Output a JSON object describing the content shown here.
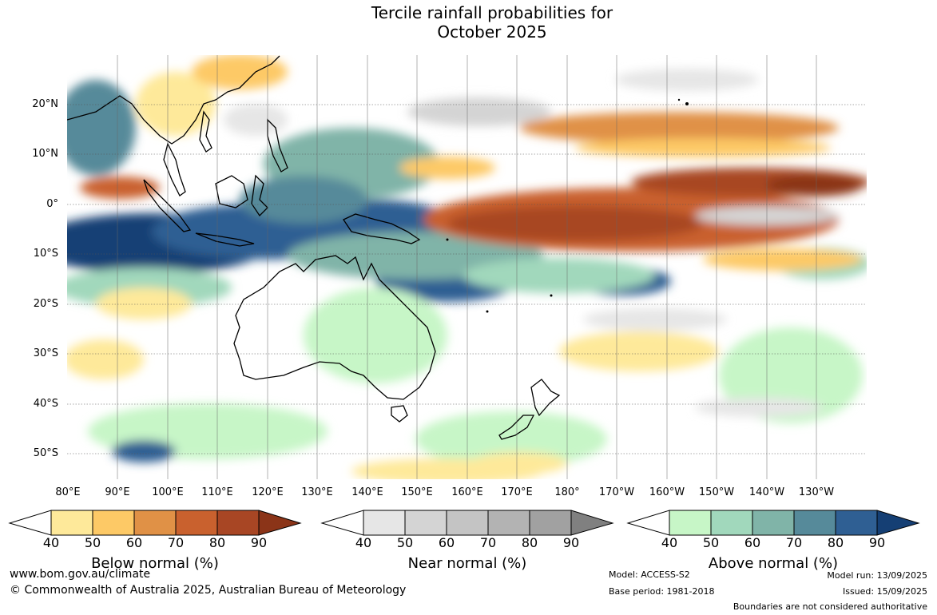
{
  "title": {
    "line1": "Tercile rainfall probabilities for",
    "line2": "October 2025"
  },
  "map": {
    "lat_labels": [
      "20°N",
      "10°N",
      "0°",
      "10°S",
      "20°S",
      "30°S",
      "40°S",
      "50°S"
    ],
    "lon_labels": [
      "80°E",
      "90°E",
      "100°E",
      "110°E",
      "120°E",
      "130°E",
      "140°E",
      "150°E",
      "160°E",
      "170°E",
      "180°",
      "170°W",
      "160°W",
      "150°W",
      "140°W",
      "130°W"
    ]
  },
  "legends": [
    {
      "title": "Below normal (%)",
      "ticks": [
        "40",
        "50",
        "60",
        "70",
        "80",
        "90"
      ],
      "colors": [
        "#ffffff",
        "#fee99a",
        "#fdc966",
        "#e09146",
        "#c9612e",
        "#a84624",
        "#8b3418"
      ]
    },
    {
      "title": "Near normal (%)",
      "ticks": [
        "40",
        "50",
        "60",
        "70",
        "80",
        "90"
      ],
      "colors": [
        "#ffffff",
        "#e6e6e6",
        "#d4d4d4",
        "#c4c4c4",
        "#b3b3b3",
        "#a1a1a1",
        "#808080"
      ]
    },
    {
      "title": "Above normal (%)",
      "ticks": [
        "40",
        "50",
        "60",
        "70",
        "80",
        "90"
      ],
      "colors": [
        "#ffffff",
        "#c7f6c7",
        "#a1d8bc",
        "#80b4a8",
        "#568a9a",
        "#2f5f93",
        "#153f74"
      ]
    }
  ],
  "footer": {
    "website": "www.bom.gov.au/climate",
    "copyright": "© Commonwealth of Australia 2025, Australian Bureau of Meteorology",
    "model": "Model: ACCESS-S2",
    "base_period": "Base period: 1981-2018",
    "model_run": "Model run: 13/09/2025",
    "issued": "Issued: 15/09/2025",
    "disclaimer": "Boundaries are not considered authoritative"
  }
}
